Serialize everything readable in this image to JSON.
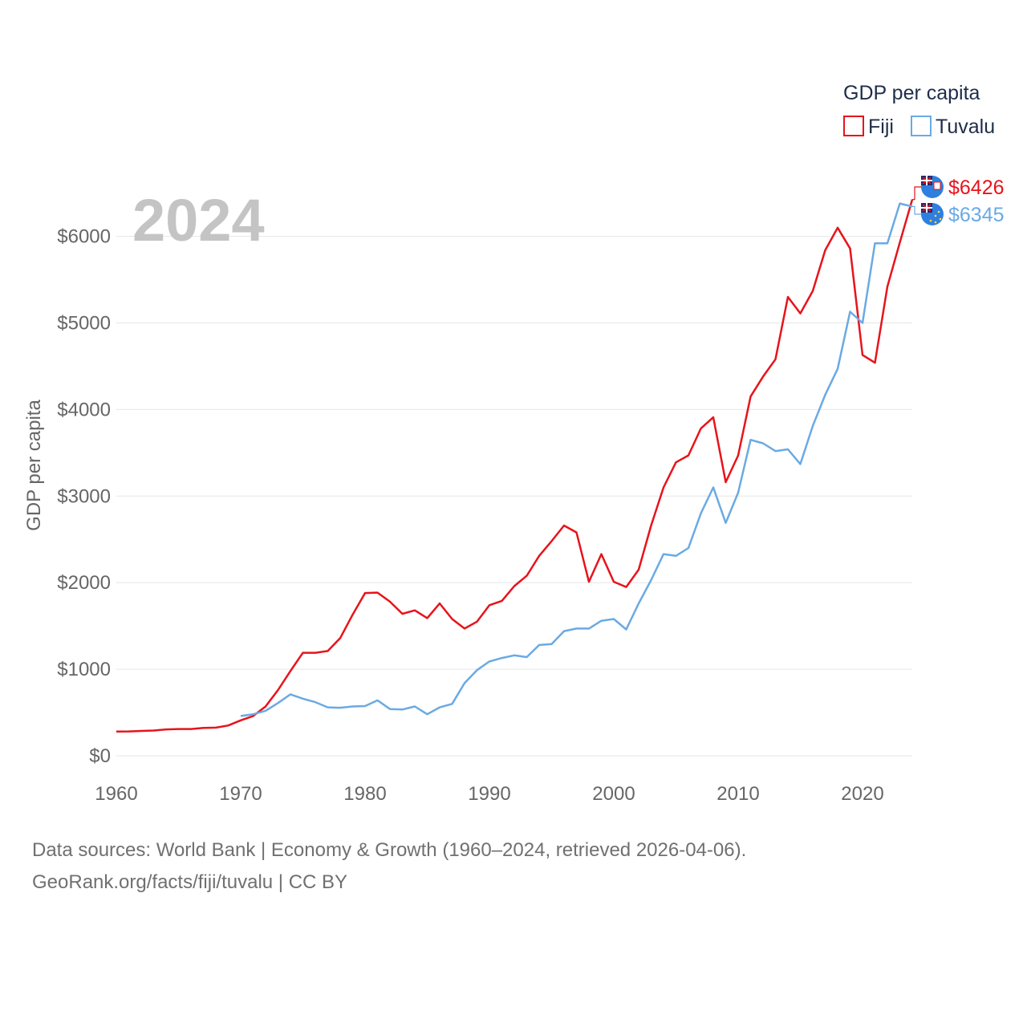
{
  "chart_data": {
    "type": "line",
    "ylabel": "GDP per capita",
    "xlabel": "",
    "xlim": [
      1960,
      2024
    ],
    "ylim": [
      0,
      6500
    ],
    "x_ticks": [
      1960,
      1970,
      1980,
      1990,
      2000,
      2010,
      2020
    ],
    "x_tick_labels": [
      "1960",
      "1970",
      "1980",
      "1990",
      "2000",
      "2010",
      "2020"
    ],
    "y_ticks": [
      0,
      1000,
      2000,
      3000,
      4000,
      5000,
      6000
    ],
    "y_tick_labels": [
      "$0",
      "$1000",
      "$2000",
      "$3000",
      "$4000",
      "$5000",
      "$6000"
    ],
    "year_label": "2024",
    "legend": {
      "title": "GDP per capita",
      "placement": "top-right",
      "items": [
        "Fiji",
        "Tuvalu"
      ]
    },
    "series": [
      {
        "name": "Fiji",
        "color": "#e8131b",
        "end_label": "$6426",
        "flag": "fiji-flag-icon",
        "x": [
          1960,
          1961,
          1962,
          1963,
          1964,
          1965,
          1966,
          1967,
          1968,
          1969,
          1970,
          1971,
          1972,
          1973,
          1974,
          1975,
          1976,
          1977,
          1978,
          1979,
          1980,
          1981,
          1982,
          1983,
          1984,
          1985,
          1986,
          1987,
          1988,
          1989,
          1990,
          1991,
          1992,
          1993,
          1994,
          1995,
          1996,
          1997,
          1998,
          1999,
          2000,
          2001,
          2002,
          2003,
          2004,
          2005,
          2006,
          2007,
          2008,
          2009,
          2010,
          2011,
          2012,
          2013,
          2014,
          2015,
          2016,
          2017,
          2018,
          2019,
          2020,
          2021,
          2022,
          2023,
          2024
        ],
        "values": [
          280,
          282,
          287,
          292,
          305,
          310,
          310,
          322,
          325,
          350,
          410,
          460,
          570,
          760,
          980,
          1190,
          1190,
          1210,
          1360,
          1630,
          1880,
          1885,
          1780,
          1640,
          1680,
          1590,
          1760,
          1580,
          1470,
          1550,
          1740,
          1790,
          1960,
          2080,
          2310,
          2480,
          2660,
          2580,
          2010,
          2330,
          2010,
          1950,
          2150,
          2660,
          3100,
          3390,
          3470,
          3780,
          3910,
          3160,
          3470,
          4150,
          4380,
          4580,
          5300,
          5110,
          5370,
          5840,
          6100,
          5860,
          4630,
          4540,
          5420,
          5930,
          6426
        ]
      },
      {
        "name": "Tuvalu",
        "color": "#6aaae4",
        "end_label": "$6345",
        "flag": "tuvalu-flag-icon",
        "x": [
          1970,
          1971,
          1972,
          1973,
          1974,
          1975,
          1976,
          1977,
          1978,
          1979,
          1980,
          1981,
          1982,
          1983,
          1984,
          1985,
          1986,
          1987,
          1988,
          1989,
          1990,
          1991,
          1992,
          1993,
          1994,
          1995,
          1996,
          1997,
          1998,
          1999,
          2000,
          2001,
          2002,
          2003,
          2004,
          2005,
          2006,
          2007,
          2008,
          2009,
          2010,
          2011,
          2012,
          2013,
          2014,
          2015,
          2016,
          2017,
          2018,
          2019,
          2020,
          2021,
          2022,
          2023,
          2024
        ],
        "values": [
          460,
          480,
          520,
          610,
          710,
          660,
          620,
          560,
          555,
          570,
          575,
          640,
          540,
          535,
          570,
          480,
          560,
          600,
          840,
          990,
          1090,
          1130,
          1160,
          1140,
          1280,
          1290,
          1440,
          1470,
          1470,
          1560,
          1580,
          1460,
          1760,
          2030,
          2330,
          2310,
          2400,
          2800,
          3100,
          2690,
          3040,
          3650,
          3610,
          3520,
          3540,
          3370,
          3810,
          4170,
          4470,
          5130,
          5000,
          5920,
          5920,
          6380,
          6345
        ]
      }
    ]
  },
  "footer": {
    "line1": "Data sources: World Bank | Economy & Growth (1960–2024, retrieved 2026-04-06).",
    "line2": "GeoRank.org/facts/fiji/tuvalu | CC BY"
  }
}
